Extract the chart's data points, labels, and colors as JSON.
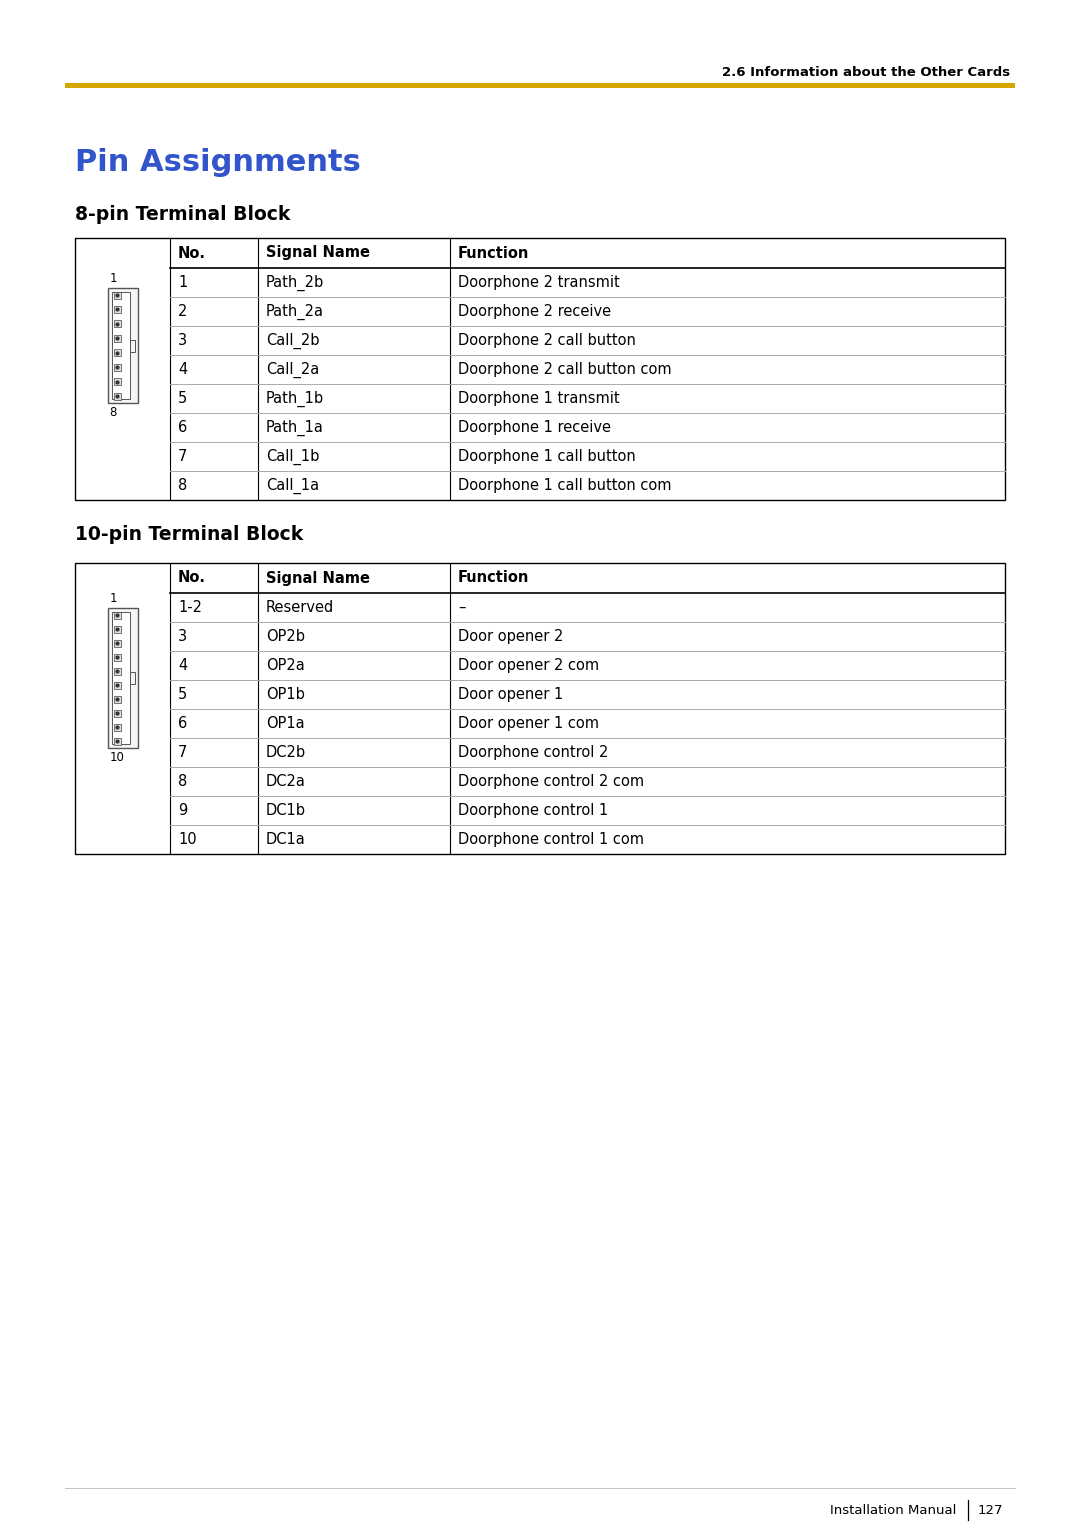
{
  "page_header": "2.6 Information about the Other Cards",
  "header_line_color": "#D4A800",
  "title": "Pin Assignments",
  "title_color": "#3355CC",
  "section1_title": "8-pin Terminal Block",
  "section2_title": "10-pin Terminal Block",
  "table1_headers": [
    "No.",
    "Signal Name",
    "Function"
  ],
  "table1_rows": [
    [
      "1",
      "Path_2b",
      "Doorphone 2 transmit"
    ],
    [
      "2",
      "Path_2a",
      "Doorphone 2 receive"
    ],
    [
      "3",
      "Call_2b",
      "Doorphone 2 call button"
    ],
    [
      "4",
      "Call_2a",
      "Doorphone 2 call button com"
    ],
    [
      "5",
      "Path_1b",
      "Doorphone 1 transmit"
    ],
    [
      "6",
      "Path_1a",
      "Doorphone 1 receive"
    ],
    [
      "7",
      "Call_1b",
      "Doorphone 1 call button"
    ],
    [
      "8",
      "Call_1a",
      "Doorphone 1 call button com"
    ]
  ],
  "table2_headers": [
    "No.",
    "Signal Name",
    "Function"
  ],
  "table2_rows": [
    [
      "1-2",
      "Reserved",
      "–"
    ],
    [
      "3",
      "OP2b",
      "Door opener 2"
    ],
    [
      "4",
      "OP2a",
      "Door opener 2 com"
    ],
    [
      "5",
      "OP1b",
      "Door opener 1"
    ],
    [
      "6",
      "OP1a",
      "Door opener 1 com"
    ],
    [
      "7",
      "DC2b",
      "Doorphone control 2"
    ],
    [
      "8",
      "DC2a",
      "Doorphone control 2 com"
    ],
    [
      "9",
      "DC1b",
      "Doorphone control 1"
    ],
    [
      "10",
      "DC1a",
      "Doorphone control 1 com"
    ]
  ],
  "footer_text": "Installation Manual",
  "footer_page": "127",
  "bg_color": "#FFFFFF",
  "table_border_color": "#000000",
  "row_line_color": "#AAAAAA",
  "text_color": "#000000",
  "header_line_color_yellow": "#D4A800"
}
